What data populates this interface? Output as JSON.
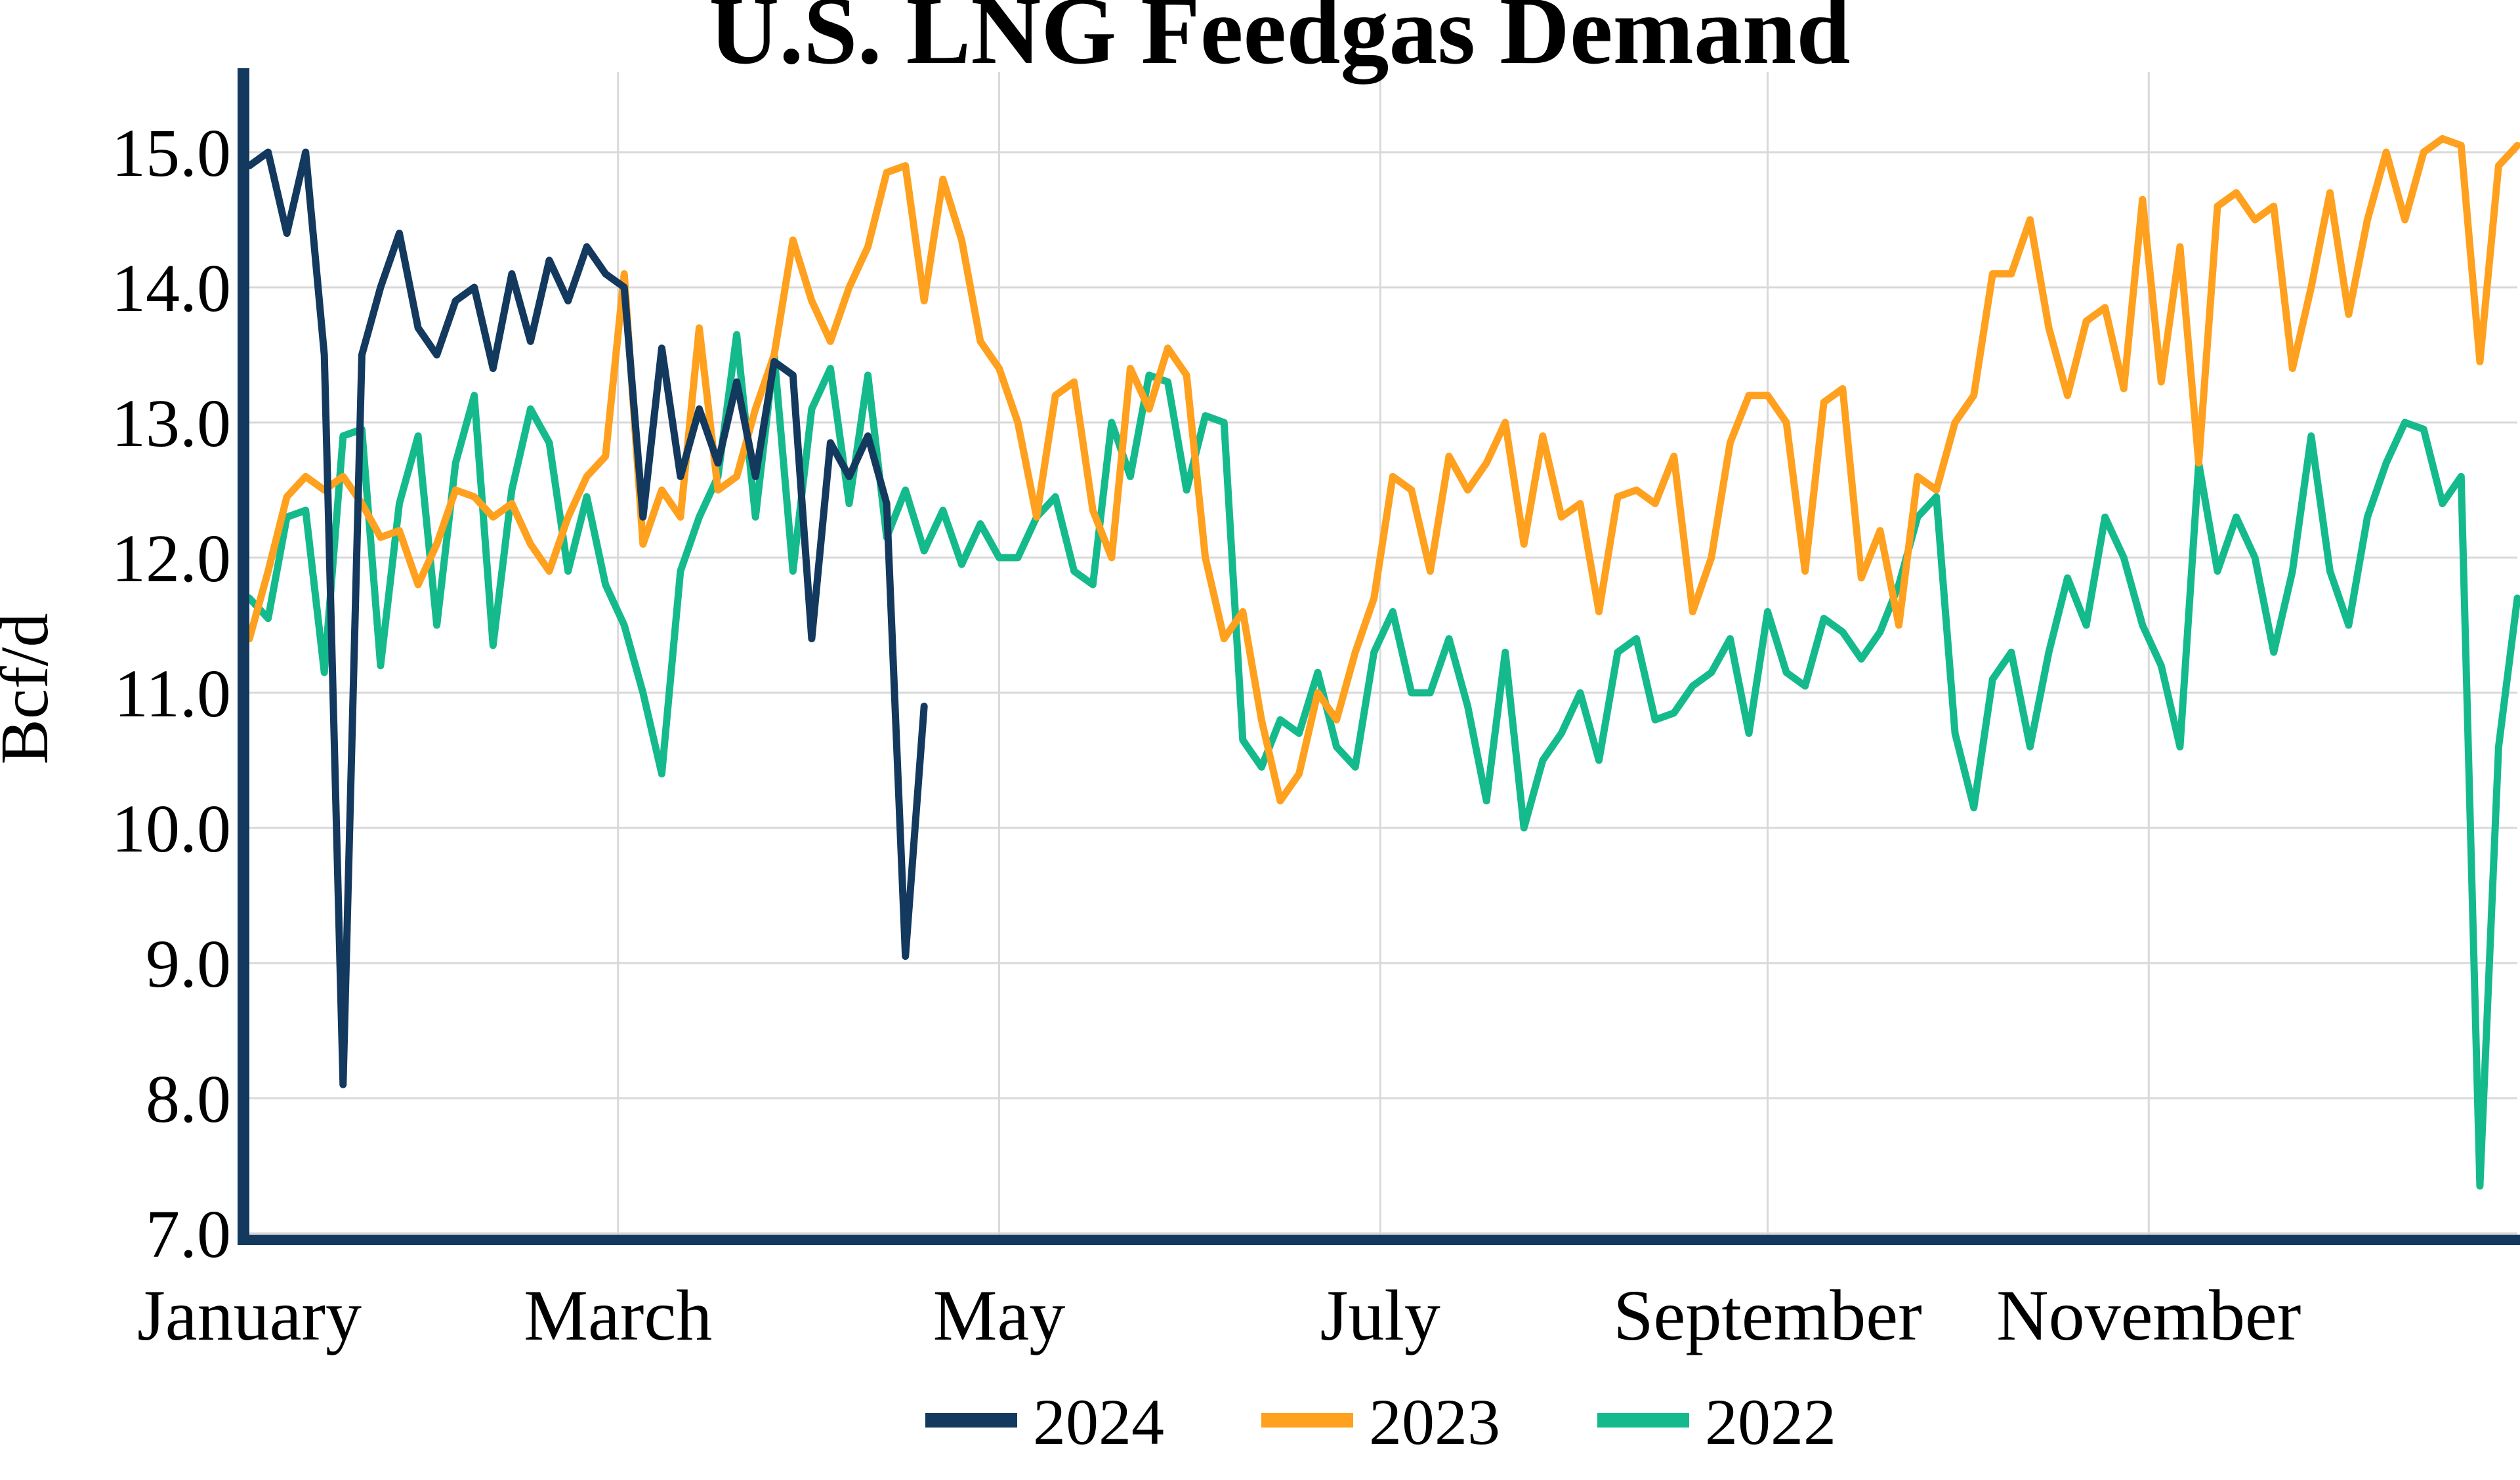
{
  "chart_data": {
    "type": "line",
    "title": "U.S. LNG Feedgas Demand",
    "ylabel": "Bcf/d",
    "background": "#ffffff",
    "axis_color": "#13395E",
    "grid": {
      "on": true,
      "color": "#D9D9D9",
      "horizontal": true,
      "vertical": true
    },
    "y_axis": {
      "min": 7.0,
      "max": 15.0,
      "tick_step": 1.0,
      "tick_labels": [
        "15.0",
        "14.0",
        "13.0",
        "12.0",
        "11.0",
        "10.0",
        "9.0",
        "8.0",
        "7.0"
      ],
      "tick_values": [
        15.0,
        14.0,
        13.0,
        12.0,
        11.0,
        10.0,
        9.0,
        8.0,
        7.0
      ]
    },
    "x_axis": {
      "domain_days": [
        0,
        363
      ],
      "tick_labels": [
        "January",
        "March",
        "May",
        "July",
        "September",
        "November"
      ],
      "tick_days": [
        0,
        59,
        120,
        181,
        243,
        304
      ],
      "gridline_days": [
        59,
        120,
        181,
        243,
        304
      ]
    },
    "x_step_days": 3,
    "legend": {
      "position": "bottom",
      "entries": [
        "2024",
        "2023",
        "2022"
      ]
    },
    "series": [
      {
        "name": "2022",
        "color": "#15BA8C",
        "x_start_day": 0,
        "values": [
          11.7,
          11.55,
          12.3,
          12.35,
          11.15,
          12.9,
          12.95,
          11.2,
          12.4,
          12.9,
          11.5,
          12.7,
          13.2,
          11.35,
          12.5,
          13.1,
          12.85,
          11.9,
          12.45,
          11.8,
          11.5,
          11.0,
          10.4,
          11.9,
          12.3,
          12.6,
          13.65,
          12.3,
          13.5,
          11.9,
          13.1,
          13.4,
          12.4,
          13.35,
          12.15,
          12.5,
          12.05,
          12.35,
          11.95,
          12.25,
          12.0,
          12.0,
          12.3,
          12.45,
          11.9,
          11.8,
          13.0,
          12.6,
          13.35,
          13.3,
          12.5,
          13.05,
          13.0,
          10.65,
          10.45,
          10.8,
          10.7,
          11.15,
          10.6,
          10.45,
          11.3,
          11.6,
          11.0,
          11.0,
          11.4,
          10.9,
          10.2,
          11.3,
          10.0,
          10.5,
          10.7,
          11.0,
          10.5,
          11.3,
          11.4,
          10.8,
          10.85,
          11.05,
          11.15,
          11.4,
          10.7,
          11.6,
          11.15,
          11.05,
          11.55,
          11.45,
          11.25,
          11.45,
          11.8,
          12.3,
          12.45,
          10.7,
          10.15,
          11.1,
          11.3,
          10.6,
          11.3,
          11.85,
          11.5,
          12.3,
          12.0,
          11.5,
          11.2,
          10.6,
          12.7,
          11.9,
          12.3,
          12.0,
          11.3,
          11.9,
          12.9,
          11.9,
          11.5,
          12.3,
          12.7,
          13.0,
          12.95,
          12.4,
          12.6,
          7.35,
          10.6,
          11.7
        ]
      },
      {
        "name": "2023",
        "color": "#FFA01E",
        "x_start_day": 0,
        "values": [
          11.4,
          11.9,
          12.45,
          12.6,
          12.5,
          12.6,
          12.4,
          12.15,
          12.2,
          11.8,
          12.1,
          12.5,
          12.45,
          12.3,
          12.4,
          12.1,
          11.9,
          12.3,
          12.6,
          12.75,
          14.1,
          12.1,
          12.5,
          12.3,
          13.7,
          12.5,
          12.6,
          13.1,
          13.5,
          14.35,
          13.9,
          13.6,
          14.0,
          14.3,
          14.85,
          14.9,
          13.9,
          14.8,
          14.35,
          13.6,
          13.4,
          13.0,
          12.3,
          13.2,
          13.3,
          12.35,
          12.0,
          13.4,
          13.1,
          13.55,
          13.35,
          12.0,
          11.4,
          11.6,
          10.8,
          10.2,
          10.4,
          11.0,
          10.8,
          11.3,
          11.7,
          12.6,
          12.5,
          11.9,
          12.75,
          12.5,
          12.7,
          13.0,
          12.1,
          12.9,
          12.3,
          12.4,
          11.6,
          12.45,
          12.5,
          12.4,
          12.75,
          11.6,
          12.0,
          12.85,
          13.2,
          13.2,
          13.0,
          11.9,
          13.15,
          13.25,
          11.85,
          12.2,
          11.5,
          12.6,
          12.5,
          13.0,
          13.2,
          14.1,
          14.1,
          14.5,
          13.7,
          13.2,
          13.75,
          13.85,
          13.25,
          14.65,
          13.3,
          14.3,
          12.7,
          14.6,
          14.7,
          14.5,
          14.6,
          13.4,
          14.0,
          14.7,
          13.8,
          14.5,
          15.0,
          14.5,
          15.0,
          15.1,
          15.05,
          13.45,
          14.9,
          15.05
        ]
      },
      {
        "name": "2024",
        "color": "#13395E",
        "x_start_day": 0,
        "values": [
          14.9,
          15.0,
          14.4,
          15.0,
          13.5,
          8.1,
          13.5,
          14.0,
          14.4,
          13.7,
          13.5,
          13.9,
          14.0,
          13.4,
          14.1,
          13.6,
          14.2,
          13.9,
          14.3,
          14.1,
          14.0,
          12.3,
          13.55,
          12.6,
          13.1,
          12.7,
          13.3,
          12.6,
          13.45,
          13.35,
          11.4,
          12.85,
          12.6,
          12.9,
          12.4,
          9.05,
          10.9
        ]
      }
    ]
  }
}
